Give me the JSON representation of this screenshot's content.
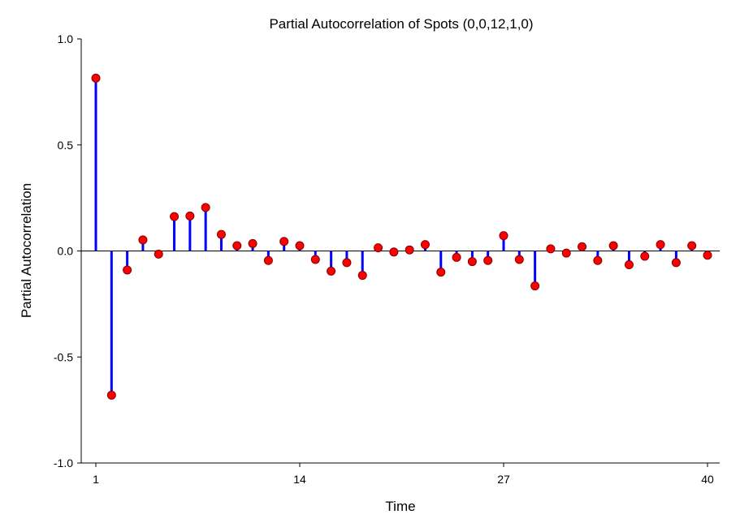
{
  "chart_data": {
    "type": "stem",
    "title": "Partial Autocorrelation of Spots (0,0,12,1,0)",
    "xlabel": "Time",
    "ylabel": "Partial Autocorrelation",
    "xlim": [
      1,
      40
    ],
    "ylim": [
      -1.0,
      1.0
    ],
    "xticks": [
      1,
      14,
      27,
      40
    ],
    "xtick_labels": [
      "1",
      "14",
      "27",
      "40"
    ],
    "yticks": [
      -1.0,
      -0.5,
      0.0,
      0.5,
      1.0
    ],
    "ytick_labels": [
      "-1.0",
      "-0.5",
      "0.0",
      "0.5",
      "1.0"
    ],
    "grid": false,
    "colors": {
      "stem": "#0000ff",
      "marker": "#ff0000",
      "marker_edge": "#800000",
      "axis": "#000000"
    },
    "x": [
      1,
      2,
      3,
      4,
      5,
      6,
      7,
      8,
      9,
      10,
      11,
      12,
      13,
      14,
      15,
      16,
      17,
      18,
      19,
      20,
      21,
      22,
      23,
      24,
      25,
      26,
      27,
      28,
      29,
      30,
      31,
      32,
      33,
      34,
      35,
      36,
      37,
      38,
      39,
      40
    ],
    "values": [
      0.815,
      -0.68,
      -0.09,
      0.052,
      -0.015,
      0.162,
      0.165,
      0.205,
      0.078,
      0.025,
      0.035,
      -0.045,
      0.045,
      0.025,
      -0.04,
      -0.095,
      -0.055,
      -0.115,
      0.015,
      -0.005,
      0.005,
      0.03,
      -0.1,
      -0.03,
      -0.05,
      -0.045,
      0.072,
      -0.04,
      -0.165,
      0.01,
      -0.01,
      0.02,
      -0.045,
      0.025,
      -0.065,
      -0.025,
      0.03,
      -0.055,
      0.025,
      -0.02
    ]
  }
}
